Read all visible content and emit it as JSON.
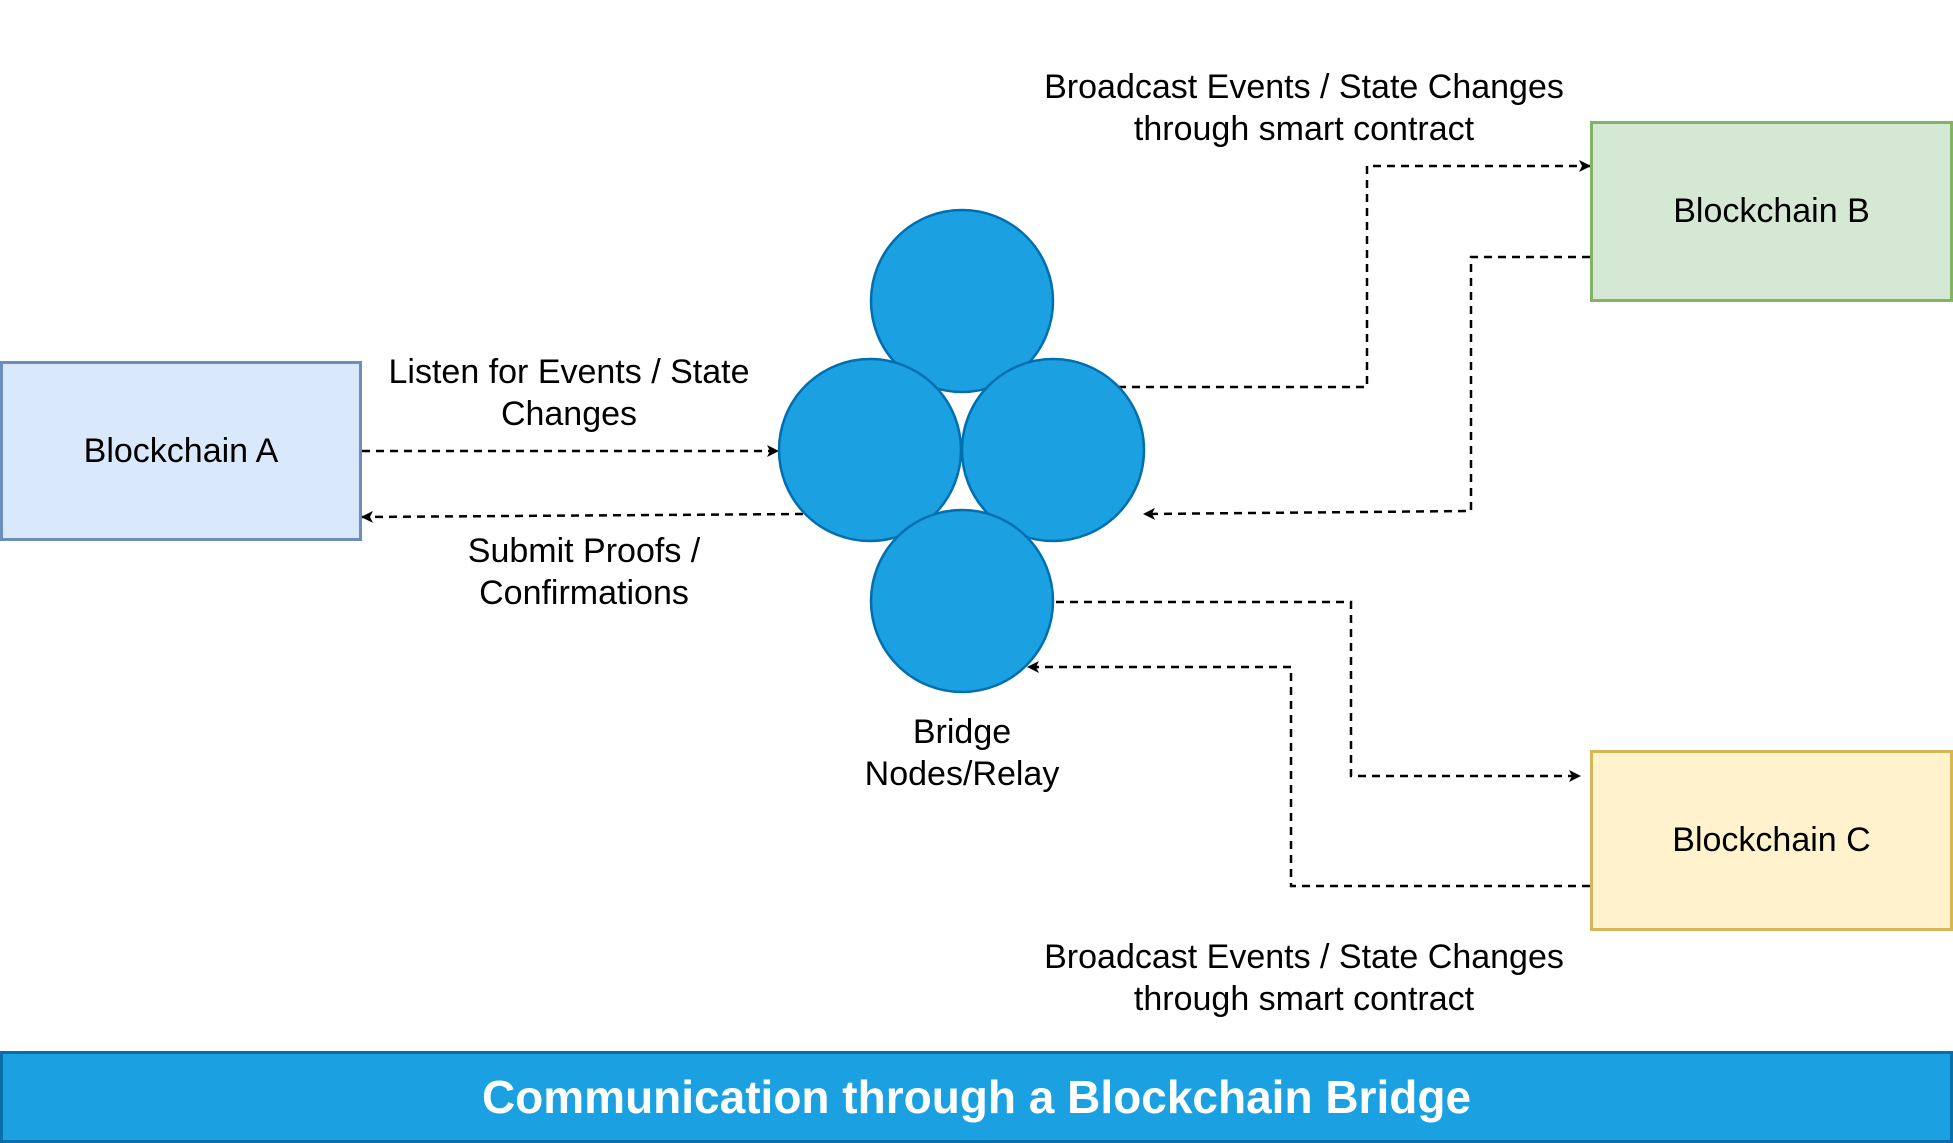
{
  "title": "Communication through a Blockchain Bridge",
  "colors": {
    "node_fill": "#1ba1e2",
    "node_stroke": "#006eaf",
    "banner_fill": "#1ba1e2",
    "blockchain_a_fill": "#dae8fc",
    "blockchain_a_stroke": "#6c8ebf",
    "blockchain_b_fill": "#d5e8d4",
    "blockchain_b_stroke": "#82b366",
    "blockchain_c_fill": "#fff2cc",
    "blockchain_c_stroke": "#d6b656",
    "arrow": "#000000"
  },
  "nodes": {
    "blockchain_a": "Blockchain A",
    "blockchain_b": "Blockchain B",
    "blockchain_c": "Blockchain C",
    "bridge": {
      "line1": "Bridge",
      "line2": "Nodes/Relay"
    }
  },
  "edge_labels": {
    "listen": {
      "line1": "Listen for Events / State",
      "line2": "Changes"
    },
    "submit": {
      "line1": "Submit Proofs /",
      "line2": "Confirmations"
    },
    "broadcast_b": {
      "line1": "Broadcast Events / State Changes",
      "line2": "through smart contract"
    },
    "broadcast_c": {
      "line1": "Broadcast Events / State Changes",
      "line2": "through smart contract"
    }
  }
}
